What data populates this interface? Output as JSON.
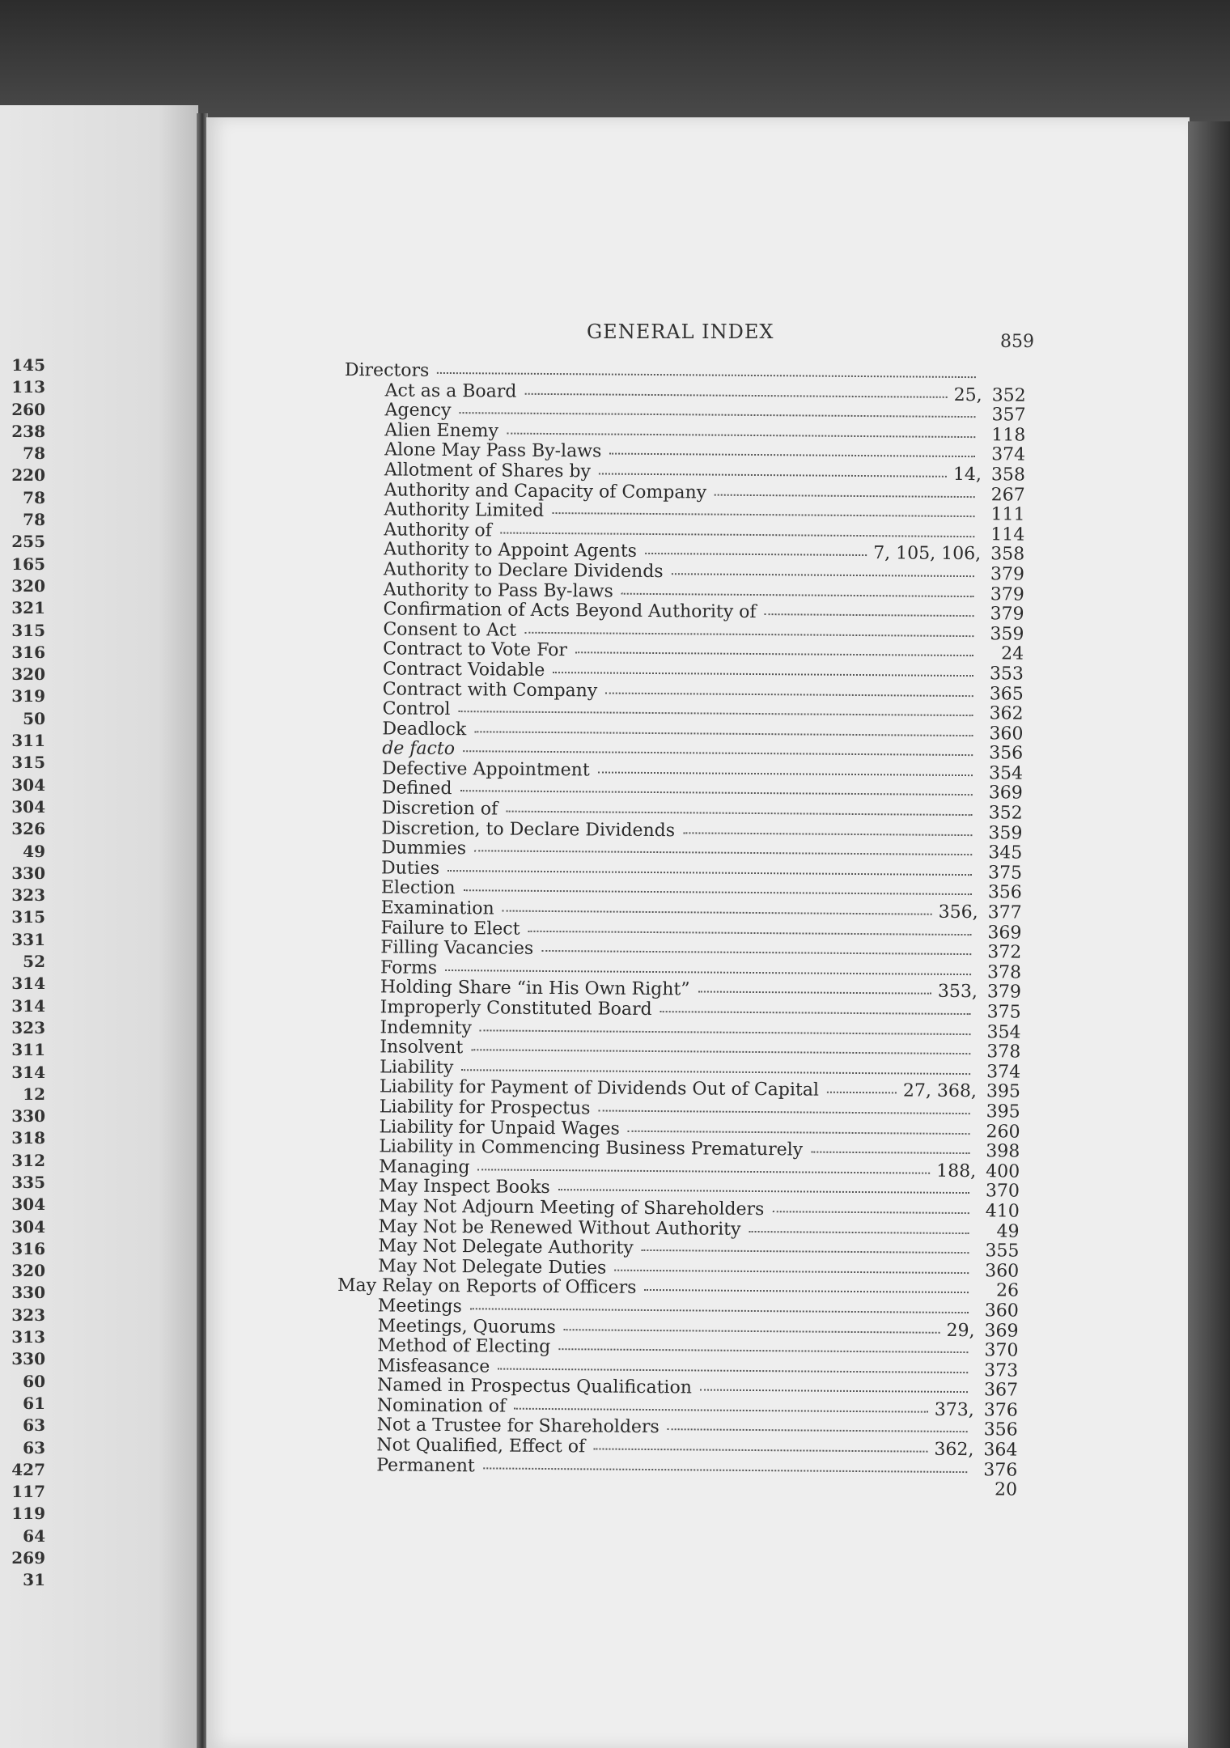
{
  "left_page": {
    "numbers": [
      "145",
      "113",
      "260",
      "238",
      "78",
      "220",
      "78",
      "78",
      "255",
      "165",
      "320",
      "321",
      "315",
      "316",
      "320",
      "319",
      "50",
      "311",
      "315",
      "304",
      "304",
      "326",
      "49",
      "330",
      "323",
      "315",
      "331",
      "52",
      "314",
      "314",
      "323",
      "311",
      "314",
      "12",
      "330",
      "318",
      "312",
      "335",
      "304",
      "304",
      "316",
      "320",
      "330",
      "323",
      "313",
      "330",
      "60",
      "61",
      "63",
      "63",
      "427",
      "117",
      "119",
      "64",
      "269",
      "31"
    ]
  },
  "right_page": {
    "title": "GENERAL INDEX",
    "page_number": "859",
    "entries": [
      {
        "text": "Directors",
        "pre": "",
        "ref": "",
        "level": 0
      },
      {
        "text": "Act as a Board",
        "pre": "25,",
        "ref": "352",
        "level": 1
      },
      {
        "text": "Agency",
        "pre": "",
        "ref": "357",
        "level": 1
      },
      {
        "text": "Alien Enemy",
        "pre": "",
        "ref": "118",
        "level": 1
      },
      {
        "text": "Alone May Pass By-laws",
        "pre": "",
        "ref": "374",
        "level": 1
      },
      {
        "text": "Allotment of Shares by",
        "pre": "14,",
        "ref": "358",
        "level": 1
      },
      {
        "text": "Authority and Capacity of Company",
        "pre": "",
        "ref": "267",
        "level": 1
      },
      {
        "text": "Authority Limited",
        "pre": "",
        "ref": "111",
        "level": 1
      },
      {
        "text": "Authority of",
        "pre": "",
        "ref": "114",
        "level": 1
      },
      {
        "text": "Authority to Appoint Agents",
        "pre": "7, 105, 106,",
        "ref": "358",
        "level": 1
      },
      {
        "text": "Authority to Declare Dividends",
        "pre": "",
        "ref": "379",
        "level": 1
      },
      {
        "text": "Authority to Pass By-laws",
        "pre": "",
        "ref": "379",
        "level": 1
      },
      {
        "text": "Confirmation of Acts Beyond Authority of",
        "pre": "",
        "ref": "379",
        "level": 1
      },
      {
        "text": "Consent to Act",
        "pre": "",
        "ref": "359",
        "level": 1
      },
      {
        "text": "Contract to Vote For",
        "pre": "",
        "ref": "24",
        "level": 1
      },
      {
        "text": "Contract Voidable",
        "pre": "",
        "ref": "353",
        "level": 1
      },
      {
        "text": "Contract with Company",
        "pre": "",
        "ref": "365",
        "level": 1
      },
      {
        "text": "Control",
        "pre": "",
        "ref": "362",
        "level": 1
      },
      {
        "text": "Deadlock",
        "pre": "",
        "ref": "360",
        "level": 1
      },
      {
        "text": "de facto",
        "pre": "",
        "ref": "356",
        "level": 1,
        "italic": true
      },
      {
        "text": "Defective Appointment",
        "pre": "",
        "ref": "354",
        "level": 1
      },
      {
        "text": "Defined",
        "pre": "",
        "ref": "369",
        "level": 1
      },
      {
        "text": "Discretion of",
        "pre": "",
        "ref": "352",
        "level": 1
      },
      {
        "text": "Discretion, to Declare Dividends",
        "pre": "",
        "ref": "359",
        "level": 1
      },
      {
        "text": "Dummies",
        "pre": "",
        "ref": "345",
        "level": 1
      },
      {
        "text": "Duties",
        "pre": "",
        "ref": "375",
        "level": 1
      },
      {
        "text": "Election",
        "pre": "",
        "ref": "356",
        "level": 1
      },
      {
        "text": "Examination",
        "pre": "356,",
        "ref": "377",
        "level": 1
      },
      {
        "text": "Failure to Elect",
        "pre": "",
        "ref": "369",
        "level": 1
      },
      {
        "text": "Filling Vacancies",
        "pre": "",
        "ref": "372",
        "level": 1
      },
      {
        "text": "Forms",
        "pre": "",
        "ref": "378",
        "level": 1
      },
      {
        "text": "Holding Share “in His Own Right”",
        "pre": "353,",
        "ref": "379",
        "level": 1
      },
      {
        "text": "Improperly Constituted Board",
        "pre": "",
        "ref": "375",
        "level": 1
      },
      {
        "text": "Indemnity",
        "pre": "",
        "ref": "354",
        "level": 1
      },
      {
        "text": "Insolvent",
        "pre": "",
        "ref": "378",
        "level": 1
      },
      {
        "text": "Liability",
        "pre": "",
        "ref": "374",
        "level": 1
      },
      {
        "text": "Liability for Payment of Dividends Out of Capital",
        "pre": "27, 368,",
        "ref": "395",
        "level": 1
      },
      {
        "text": "Liability for Prospectus",
        "pre": "",
        "ref": "395",
        "level": 1
      },
      {
        "text": "Liability for Unpaid Wages",
        "pre": "",
        "ref": "260",
        "level": 1
      },
      {
        "text": "Liability in Commencing Business Prematurely",
        "pre": "",
        "ref": "398",
        "level": 1
      },
      {
        "text": "Managing",
        "pre": "188,",
        "ref": "400",
        "level": 1
      },
      {
        "text": "May Inspect Books",
        "pre": "",
        "ref": "370",
        "level": 1
      },
      {
        "text": "May Not Adjourn Meeting of Shareholders",
        "pre": "",
        "ref": "410",
        "level": 1
      },
      {
        "text": "May Not be Renewed Without Authority",
        "pre": "",
        "ref": "49",
        "level": 1
      },
      {
        "text": "May Not Delegate Authority",
        "pre": "",
        "ref": "355",
        "level": 1
      },
      {
        "text": "May Not Delegate Duties",
        "pre": "",
        "ref": "360",
        "level": 1
      },
      {
        "text": "May Relay on Reports of Officers",
        "pre": "",
        "ref": "26",
        "level": 0
      },
      {
        "text": "Meetings",
        "pre": "",
        "ref": "360",
        "level": 1
      },
      {
        "text": "Meetings, Quorums",
        "pre": "29,",
        "ref": "369",
        "level": 1
      },
      {
        "text": "Method of Electing",
        "pre": "",
        "ref": "370",
        "level": 1
      },
      {
        "text": "Misfeasance",
        "pre": "",
        "ref": "373",
        "level": 1
      },
      {
        "text": "Named in Prospectus Qualification",
        "pre": "",
        "ref": "367",
        "level": 1
      },
      {
        "text": "Nomination of",
        "pre": "373,",
        "ref": "376",
        "level": 1
      },
      {
        "text": "Not a Trustee for Shareholders",
        "pre": "",
        "ref": "356",
        "level": 1
      },
      {
        "text": "Not Qualified, Effect of",
        "pre": "362,",
        "ref": "364",
        "level": 1
      },
      {
        "text": "Permanent",
        "pre": "",
        "ref": "376",
        "level": 1
      },
      {
        "text": "",
        "pre": "",
        "ref": "20",
        "level": 1
      }
    ]
  }
}
